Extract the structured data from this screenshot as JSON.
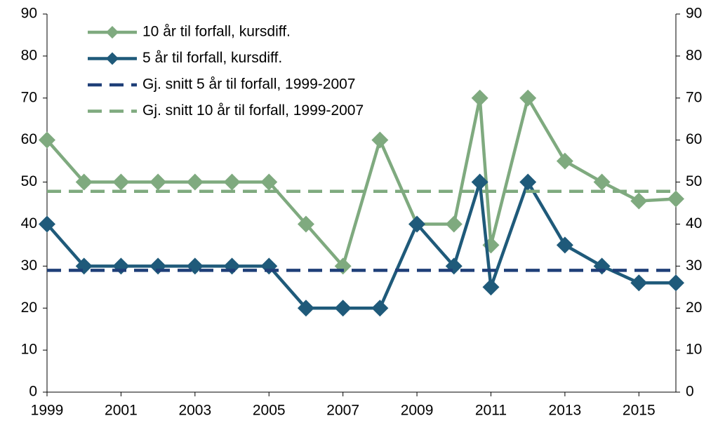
{
  "chart_data": {
    "type": "line",
    "xlim": [
      1999,
      2016
    ],
    "xticks": [
      1999,
      2001,
      2003,
      2005,
      2007,
      2009,
      2011,
      2013,
      2015
    ],
    "ylim": [
      0,
      90
    ],
    "yticks": [
      0,
      10,
      20,
      30,
      40,
      50,
      60,
      70,
      80,
      90
    ],
    "y2lim": [
      0,
      90
    ],
    "y2ticks": [
      0,
      10,
      20,
      30,
      40,
      50,
      60,
      70,
      80,
      90
    ],
    "legend": "top-left",
    "series": [
      {
        "name": "10 år til forfall, kursdiff.",
        "color": "#7faa7f",
        "marker": "diamond",
        "x": [
          1999,
          2000,
          2001,
          2002,
          2003,
          2004,
          2005,
          2006,
          2007,
          2008,
          2009,
          2010,
          2010.7,
          2011,
          2012,
          2013,
          2014,
          2015,
          2016
        ],
        "values": [
          60,
          50,
          50,
          50,
          50,
          50,
          50,
          40,
          30,
          60,
          40,
          40,
          70,
          35,
          70,
          55,
          50,
          45.5,
          46
        ]
      },
      {
        "name": "5 år til forfall, kursdiff.",
        "color": "#1f5a7a",
        "marker": "diamond",
        "x": [
          1999,
          2000,
          2001,
          2002,
          2003,
          2004,
          2005,
          2006,
          2007,
          2008,
          2009,
          2010,
          2010.7,
          2011,
          2012,
          2013,
          2014,
          2015,
          2016
        ],
        "values": [
          40,
          30,
          30,
          30,
          30,
          30,
          30,
          20,
          20,
          20,
          40,
          30,
          50,
          25,
          50,
          35,
          30,
          26,
          26
        ]
      },
      {
        "name": "Gj. snitt 5 år til forfall, 1999-2007",
        "color": "#1f3f78",
        "dash": true,
        "x": [
          1999,
          2016
        ],
        "values": [
          29,
          29
        ]
      },
      {
        "name": "Gj. snitt 10 år til forfall, 1999-2007",
        "color": "#7faa7f",
        "dash": true,
        "x": [
          1999,
          2016
        ],
        "values": [
          47.8,
          47.8
        ]
      }
    ]
  }
}
